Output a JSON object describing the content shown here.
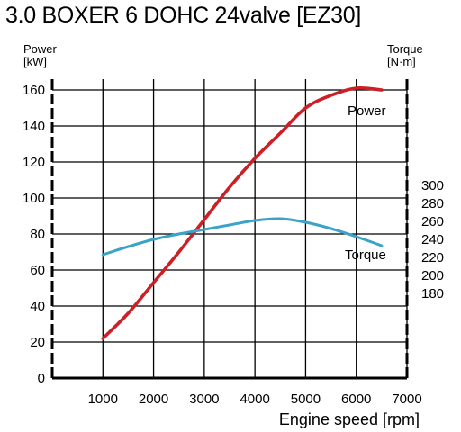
{
  "title": "3.0 BOXER 6 DOHC 24valve [EZ30]",
  "chart_data": {
    "type": "line",
    "title": "3.0 BOXER 6 DOHC 24valve [EZ30]",
    "xlabel": "Engine speed [rpm]",
    "y_left_label": [
      "Power",
      "[kW]"
    ],
    "y_right_label": [
      "Torque",
      "[N·m]"
    ],
    "xlim": [
      0,
      7000
    ],
    "x_ticks": [
      1000,
      2000,
      3000,
      4000,
      5000,
      6000,
      7000
    ],
    "y_left_lim": [
      0,
      160
    ],
    "y_left_ticks": [
      0,
      20,
      40,
      60,
      80,
      100,
      120,
      140,
      160
    ],
    "y_right_lim": [
      180,
      300
    ],
    "y_right_ticks": [
      180,
      200,
      220,
      240,
      260,
      280,
      300
    ],
    "grid": true,
    "series": [
      {
        "name": "Power",
        "axis": "left",
        "color": "#cc1f26",
        "x": [
          1000,
          1500,
          2000,
          2500,
          3000,
          3500,
          4000,
          4500,
          5000,
          5500,
          6000,
          6500
        ],
        "y": [
          22,
          36,
          53,
          70,
          88,
          106,
          122,
          136,
          150,
          157,
          161,
          160
        ]
      },
      {
        "name": "Torque",
        "axis": "right",
        "color": "#3aa3c7",
        "x": [
          1000,
          1500,
          2000,
          2500,
          3000,
          3500,
          4000,
          4500,
          5000,
          5500,
          6000,
          6500
        ],
        "y": [
          223,
          232,
          240,
          246,
          251,
          256,
          261,
          263,
          259,
          252,
          243,
          233
        ]
      }
    ]
  }
}
